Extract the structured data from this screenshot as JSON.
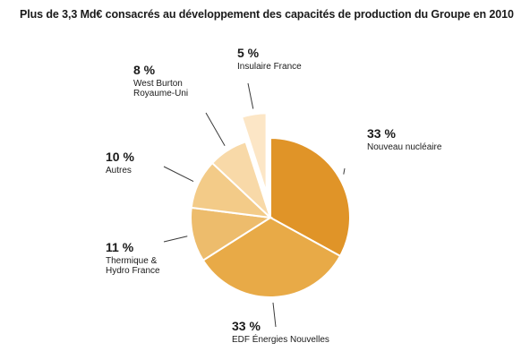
{
  "chart_data": {
    "type": "pie",
    "title": "Plus de 3,3 Md€ consacrés au développement des capacités de production du Groupe en 2010",
    "slices": [
      {
        "value": 33,
        "percent_label": "33 %",
        "label_lines": [
          "Nouveau nucléaire"
        ],
        "color": "#E09428",
        "explode": false
      },
      {
        "value": 33,
        "percent_label": "33 %",
        "label_lines": [
          "EDF Énergies Nouvelles"
        ],
        "color": "#E8AA47",
        "explode": false
      },
      {
        "value": 11,
        "percent_label": "11 %",
        "label_lines": [
          "Thermique &",
          "Hydro France"
        ],
        "color": "#EDBC6C",
        "explode": false
      },
      {
        "value": 10,
        "percent_label": "10 %",
        "label_lines": [
          "Autres"
        ],
        "color": "#F3CB88",
        "explode": false
      },
      {
        "value": 8,
        "percent_label": "8 %",
        "label_lines": [
          "West Burton",
          "Royaume-Uni"
        ],
        "color": "#F8D9A8",
        "explode": false
      },
      {
        "value": 5,
        "percent_label": "5 %",
        "label_lines": [
          "Insulaire France"
        ],
        "color": "#FCE6C6",
        "explode": true
      }
    ]
  }
}
